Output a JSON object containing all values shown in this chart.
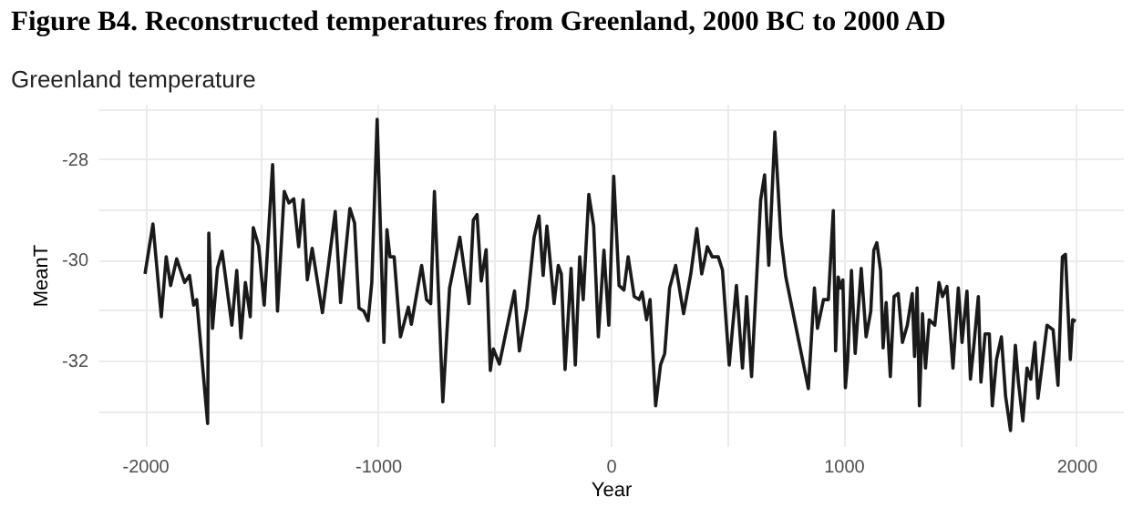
{
  "chart_data": {
    "type": "line",
    "title": "Figure B4. Reconstructed temperatures from Greenland, 2000 BC to 2000 AD",
    "subtitle": "Greenland temperature",
    "xlabel": "Year",
    "ylabel": "MeanT",
    "grid": true,
    "marker": "none",
    "line_style": "solid",
    "xlim": [
      -2200,
      2200
    ],
    "ylim": [
      -33.7,
      -26.9
    ],
    "xticks": [
      -2000,
      {
        "value": -1500,
        "label": null
      },
      -1000,
      {
        "value": -500,
        "label": null
      },
      0,
      {
        "value": 500,
        "label": null
      },
      1000,
      {
        "value": 1500,
        "label": null
      },
      2000
    ],
    "yticks": [
      {
        "value": -33,
        "label": null
      },
      -32,
      {
        "value": -31,
        "label": null
      },
      -30,
      {
        "value": -29,
        "label": null
      },
      -28,
      {
        "value": -27,
        "label": null
      }
    ],
    "x": [
      -2000,
      -1966,
      -1930,
      -1909,
      -1890,
      -1864,
      -1830,
      -1809,
      -1791,
      -1778,
      -1731,
      -1726,
      -1710,
      -1689,
      -1669,
      -1627,
      -1606,
      -1588,
      -1569,
      -1548,
      -1535,
      -1512,
      -1488,
      -1452,
      -1431,
      -1402,
      -1382,
      -1361,
      -1340,
      -1321,
      -1303,
      -1282,
      -1238,
      -1183,
      -1160,
      -1120,
      -1100,
      -1081,
      -1060,
      -1042,
      -1026,
      -1003,
      -974,
      -961,
      -948,
      -930,
      -903,
      -869,
      -856,
      -812,
      -791,
      -773,
      -757,
      -721,
      -692,
      -648,
      -608,
      -590,
      -574,
      -556,
      -535,
      -517,
      -504,
      -478,
      -413,
      -392,
      -360,
      -329,
      -308,
      -290,
      -274,
      -243,
      -225,
      -212,
      -196,
      -170,
      -152,
      -133,
      -118,
      -94,
      -73,
      -53,
      -29,
      -8,
      13,
      36,
      57,
      75,
      101,
      122,
      135,
      154,
      169,
      193,
      214,
      232,
      253,
      279,
      313,
      344,
      370,
      391,
      415,
      436,
      462,
      480,
      509,
      540,
      566,
      584,
      605,
      644,
      661,
      679,
      705,
      731,
      752,
      849,
      875,
      888,
      914,
      935,
      956,
      966,
      977,
      987,
      997,
      1008,
      1018,
      1034,
      1050,
      1076,
      1097,
      1117,
      1130,
      1143,
      1159,
      1170,
      1183,
      1201,
      1217,
      1235,
      1253,
      1274,
      1295,
      1305,
      1316,
      1326,
      1339,
      1352,
      1368,
      1392,
      1410,
      1425,
      1444,
      1470,
      1493,
      1509,
      1530,
      1545,
      1561,
      1579,
      1590,
      1608,
      1626,
      1639,
      1657,
      1678,
      1696,
      1717,
      1738,
      1751,
      1770,
      1788,
      1804,
      1822,
      1835,
      1853,
      1874,
      1900,
      1921,
      1940,
      1953,
      1974,
      1984,
      1997
    ],
    "series": [
      {
        "color": "#1a1a1a",
        "values": [
          -30.28,
          -29.29,
          -31.13,
          -29.94,
          -30.51,
          -29.98,
          -30.45,
          -30.31,
          -30.9,
          -30.79,
          -33.25,
          -29.47,
          -31.36,
          -30.17,
          -29.83,
          -31.3,
          -30.21,
          -31.55,
          -30.45,
          -31.13,
          -29.36,
          -29.72,
          -30.9,
          -28.11,
          -31.02,
          -28.64,
          -28.87,
          -28.79,
          -29.74,
          -28.81,
          -30.4,
          -29.77,
          -31.05,
          -29.04,
          -30.85,
          -28.98,
          -29.27,
          -30.96,
          -31.02,
          -31.21,
          -30.45,
          -27.21,
          -31.64,
          -29.4,
          -29.94,
          -29.94,
          -31.53,
          -30.94,
          -31.28,
          -30.11,
          -30.79,
          -30.87,
          -28.64,
          -32.82,
          -30.56,
          -29.55,
          -30.87,
          -29.21,
          -29.1,
          -30.42,
          -29.8,
          -32.2,
          -31.77,
          -32.07,
          -30.62,
          -31.81,
          -30.96,
          -29.55,
          -29.13,
          -30.31,
          -29.33,
          -30.87,
          -30.11,
          -30.28,
          -32.18,
          -30.17,
          -32.09,
          -29.94,
          -30.79,
          -28.7,
          -29.33,
          -31.53,
          -29.81,
          -31.3,
          -28.34,
          -30.51,
          -30.6,
          -29.94,
          -30.73,
          -30.79,
          -30.64,
          -31.19,
          -30.79,
          -32.9,
          -32.09,
          -31.86,
          -30.56,
          -30.11,
          -31.07,
          -30.28,
          -29.38,
          -30.28,
          -29.74,
          -29.94,
          -29.94,
          -30.2,
          -32.09,
          -30.51,
          -32.15,
          -30.73,
          -32.32,
          -28.81,
          -28.31,
          -30.11,
          -27.46,
          -29.55,
          -30.34,
          -32.56,
          -30.56,
          -31.36,
          -30.79,
          -30.79,
          -29.02,
          -31.81,
          -30.34,
          -30.56,
          -30.4,
          -32.54,
          -31.98,
          -30.21,
          -31.86,
          -30.17,
          -31.53,
          -31.02,
          -29.81,
          -29.66,
          -30.21,
          -31.75,
          -30.85,
          -32.32,
          -30.73,
          -30.67,
          -31.64,
          -31.3,
          -30.67,
          -31.92,
          -30.56,
          -32.9,
          -31.07,
          -32.15,
          -31.19,
          -31.3,
          -30.45,
          -30.73,
          -30.53,
          -32.15,
          -30.56,
          -31.64,
          -30.62,
          -32.37,
          -31.64,
          -30.73,
          -32.43,
          -31.47,
          -31.47,
          -32.9,
          -31.98,
          -31.53,
          -32.71,
          -33.39,
          -31.7,
          -32.43,
          -33.2,
          -32.15,
          -32.37,
          -31.64,
          -32.75,
          -32.09,
          -31.3,
          -31.39,
          -32.49,
          -29.94,
          -29.89,
          -31.98,
          -31.19,
          -31.22
        ]
      }
    ]
  }
}
